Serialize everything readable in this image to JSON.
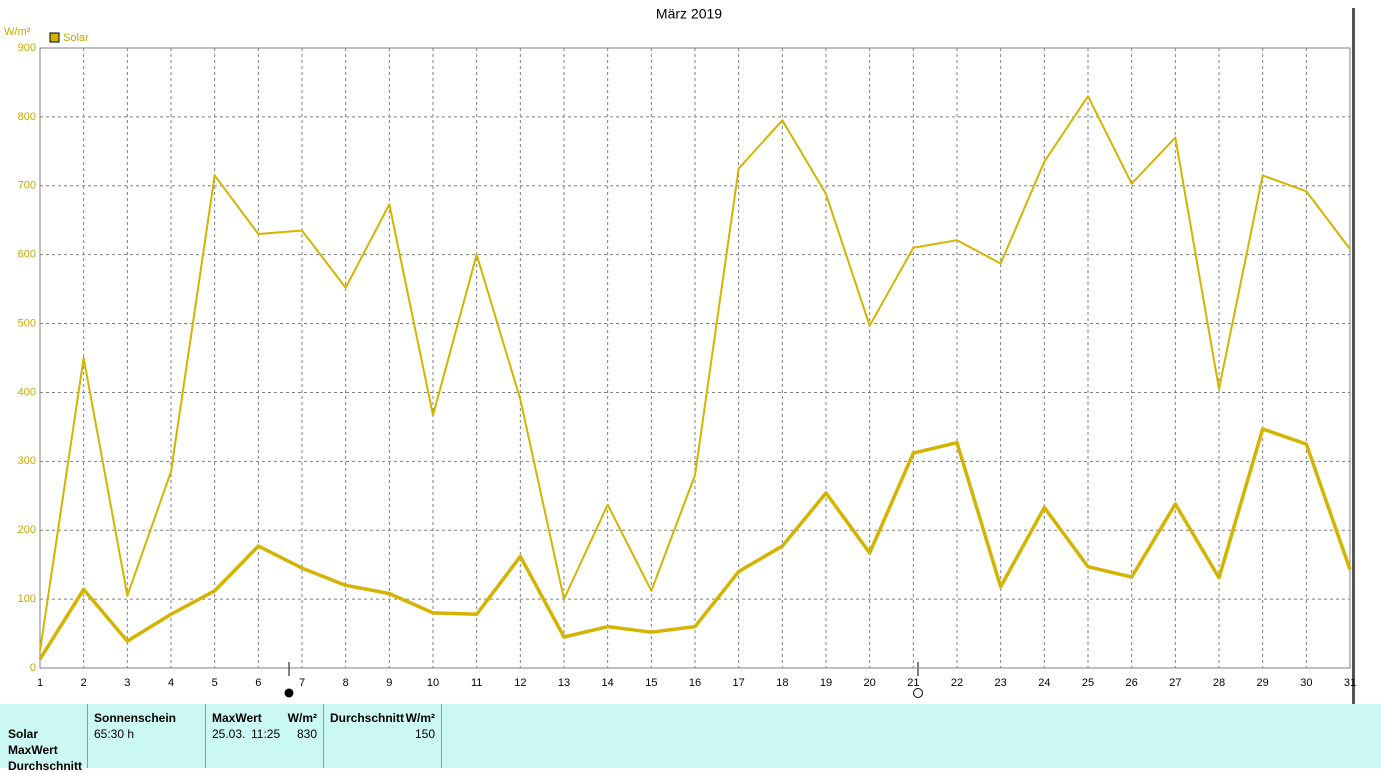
{
  "chart_data": {
    "type": "line",
    "title": "März 2019",
    "y_unit": "W/m²",
    "legend": {
      "label": "Solar",
      "color": "#d4b400"
    },
    "x": [
      1,
      2,
      3,
      4,
      5,
      6,
      7,
      8,
      9,
      10,
      11,
      12,
      13,
      14,
      15,
      16,
      17,
      18,
      19,
      20,
      21,
      22,
      23,
      24,
      25,
      26,
      27,
      28,
      29,
      30,
      31
    ],
    "xlim": [
      1,
      31
    ],
    "xticks": [
      1,
      2,
      3,
      4,
      5,
      6,
      7,
      8,
      9,
      10,
      11,
      12,
      13,
      14,
      15,
      16,
      17,
      18,
      19,
      20,
      21,
      22,
      23,
      24,
      25,
      26,
      27,
      28,
      29,
      30,
      31
    ],
    "ylim": [
      0,
      900
    ],
    "yticks": [
      0,
      100,
      200,
      300,
      400,
      500,
      600,
      700,
      800,
      900
    ],
    "grid": true,
    "series": [
      {
        "color": "#d4b400",
        "width": 2,
        "values": [
          25,
          450,
          105,
          285,
          715,
          630,
          635,
          552,
          673,
          367,
          600,
          390,
          100,
          237,
          112,
          280,
          725,
          795,
          688,
          497,
          610,
          621,
          587,
          735,
          830,
          703,
          770,
          405,
          715,
          692,
          608
        ]
      },
      {
        "color": "#d4b400",
        "width": 3.5,
        "values": [
          13,
          114,
          39,
          78,
          112,
          177,
          145,
          120,
          108,
          80,
          78,
          162,
          45,
          60,
          52,
          60,
          140,
          177,
          254,
          167,
          312,
          327,
          118,
          233,
          147,
          132,
          238,
          131,
          347,
          325,
          143
        ]
      }
    ]
  },
  "table": {
    "row_labels": [
      "Solar",
      "MaxWert",
      "Durchschnitt"
    ],
    "sunshine": {
      "header": "Sonnenschein",
      "value": "65:30 h"
    },
    "max": {
      "header": "MaxWert",
      "unit": "W/m²",
      "date": "25.03.",
      "time": "11:25",
      "value": 830
    },
    "average": {
      "header": "Durchschnitt",
      "unit": "W/m²",
      "value": 150
    }
  }
}
